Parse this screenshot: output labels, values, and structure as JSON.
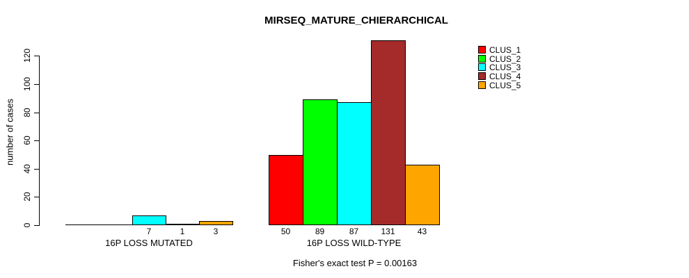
{
  "chart_data": {
    "type": "bar",
    "title": "MIRSEQ_MATURE_CHIERARCHICAL",
    "ylabel": "number of cases",
    "xlabel": "",
    "footnote": "Fisher's exact test P = 0.00163",
    "ylim": [
      0,
      131
    ],
    "yticks": [
      0,
      20,
      40,
      60,
      80,
      100,
      120
    ],
    "grid": false,
    "legend_position": "top-right",
    "legend_border": false,
    "categories": [
      "16P LOSS MUTATED",
      "16P LOSS WILD-TYPE"
    ],
    "series": [
      {
        "name": "CLUS_1",
        "color": "#FF0000",
        "values": [
          0,
          50
        ]
      },
      {
        "name": "CLUS_2",
        "color": "#00FF00",
        "values": [
          0,
          89
        ]
      },
      {
        "name": "CLUS_3",
        "color": "#00FFFF",
        "values": [
          7,
          87
        ]
      },
      {
        "name": "CLUS_4",
        "color": "#A52A2A",
        "values": [
          1,
          131
        ]
      },
      {
        "name": "CLUS_5",
        "color": "#FFA500",
        "values": [
          3,
          43
        ]
      }
    ],
    "bar_value_labels_shown": [
      "7",
      "1",
      "3",
      "50",
      "89",
      "87",
      "131",
      "43"
    ],
    "bar_border_color": "#000000",
    "background_color": "#FFFFFF"
  }
}
